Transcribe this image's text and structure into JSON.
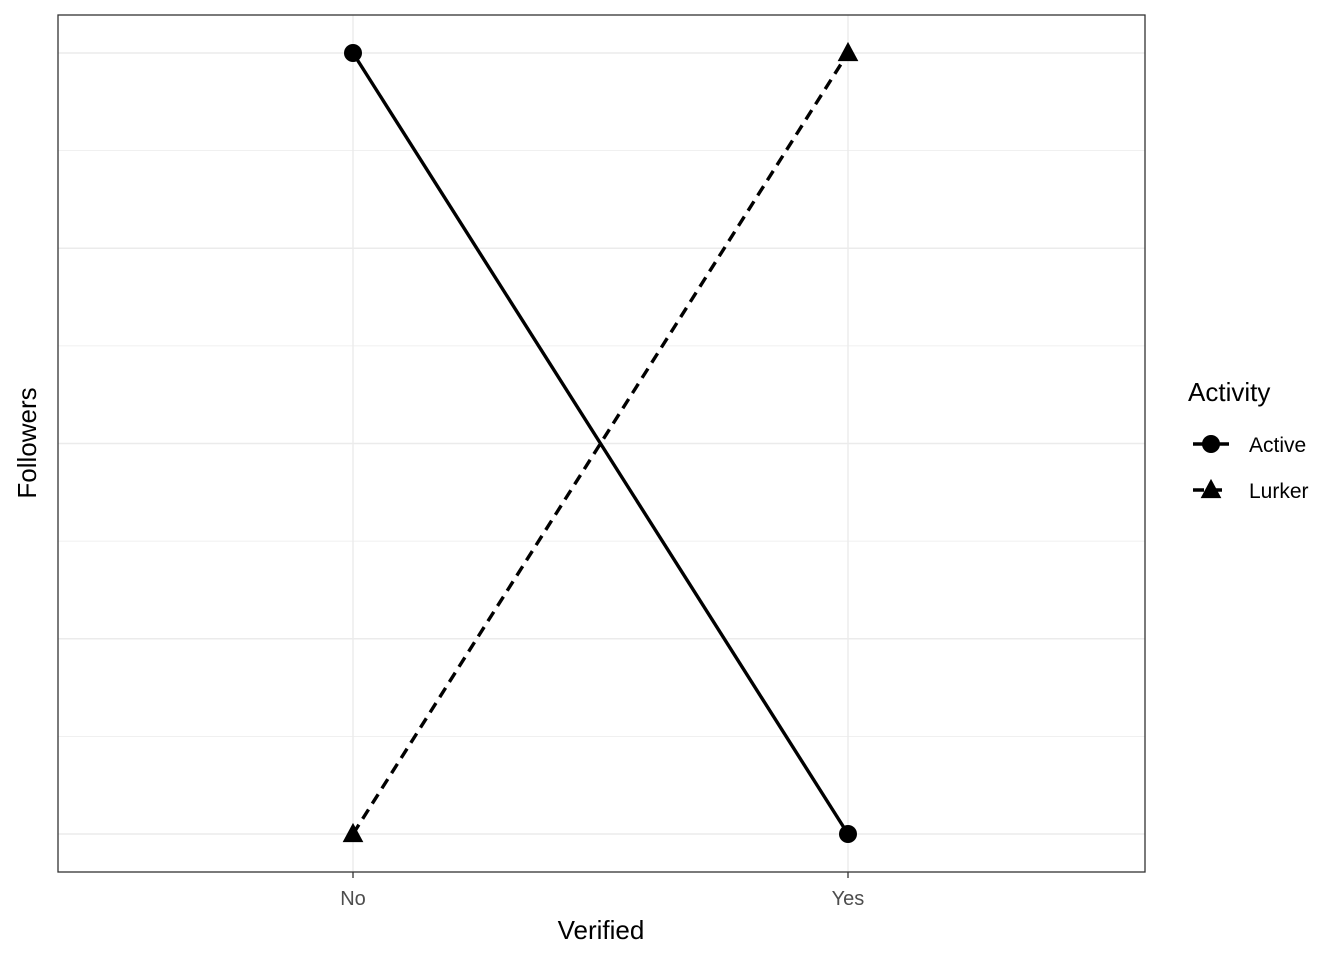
{
  "chart_data": {
    "type": "line",
    "title": "",
    "xlabel": "Verified",
    "ylabel": "Followers",
    "categories": [
      "No",
      "Yes"
    ],
    "ylim": [
      0,
      1
    ],
    "y_tick_labels_shown": false,
    "grid": true,
    "legend": {
      "title": "Activity",
      "placement": "right"
    },
    "series": [
      {
        "name": "Active",
        "values": [
          1,
          0
        ],
        "marker": "circle",
        "line_style": "solid",
        "color": "#000000"
      },
      {
        "name": "Lurker",
        "values": [
          0,
          1
        ],
        "marker": "triangle",
        "line_style": "dashed",
        "color": "#000000"
      }
    ]
  }
}
